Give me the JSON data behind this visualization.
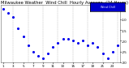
{
  "title": "Milwaukee Weather  Wind Chill  Hourly Average  (24 Hours)",
  "hours": [
    1,
    2,
    3,
    4,
    5,
    6,
    7,
    8,
    9,
    10,
    11,
    12,
    13,
    14,
    15,
    16,
    17,
    18,
    19,
    20,
    21,
    22,
    23,
    24
  ],
  "wind_chill": [
    -5,
    -7,
    -9,
    -14,
    -18,
    -22,
    -25,
    -27,
    -28,
    -26,
    -23,
    -21,
    -19,
    -19,
    -20,
    -21,
    -20,
    -22,
    -21,
    -23,
    -26,
    -28,
    -25,
    -22
  ],
  "dot_color": "#0000ee",
  "bg_color": "#ffffff",
  "legend_label": "Wind Chill",
  "legend_box_color": "#0000cc",
  "ylim": [
    -30,
    -3
  ],
  "yticks": [
    -5,
    -10,
    -15,
    -20,
    -25,
    -30
  ],
  "ytick_labels": [
    "-5",
    "-10",
    "-15",
    "-20",
    "-25",
    "-30"
  ],
  "xtick_positions": [
    1,
    3,
    5,
    7,
    9,
    11,
    13,
    15,
    17,
    19,
    21,
    23
  ],
  "xtick_labels": [
    "1",
    "3",
    "5",
    "7",
    "9",
    "11",
    "13",
    "15",
    "17",
    "19",
    "21",
    "23"
  ],
  "grid_positions": [
    3,
    6,
    9,
    12,
    15,
    18,
    21,
    24
  ],
  "grid_color": "#aaaaaa",
  "title_fontsize": 3.8,
  "tick_fontsize": 3.0,
  "dot_size": 1.5,
  "spine_color": "#666666"
}
